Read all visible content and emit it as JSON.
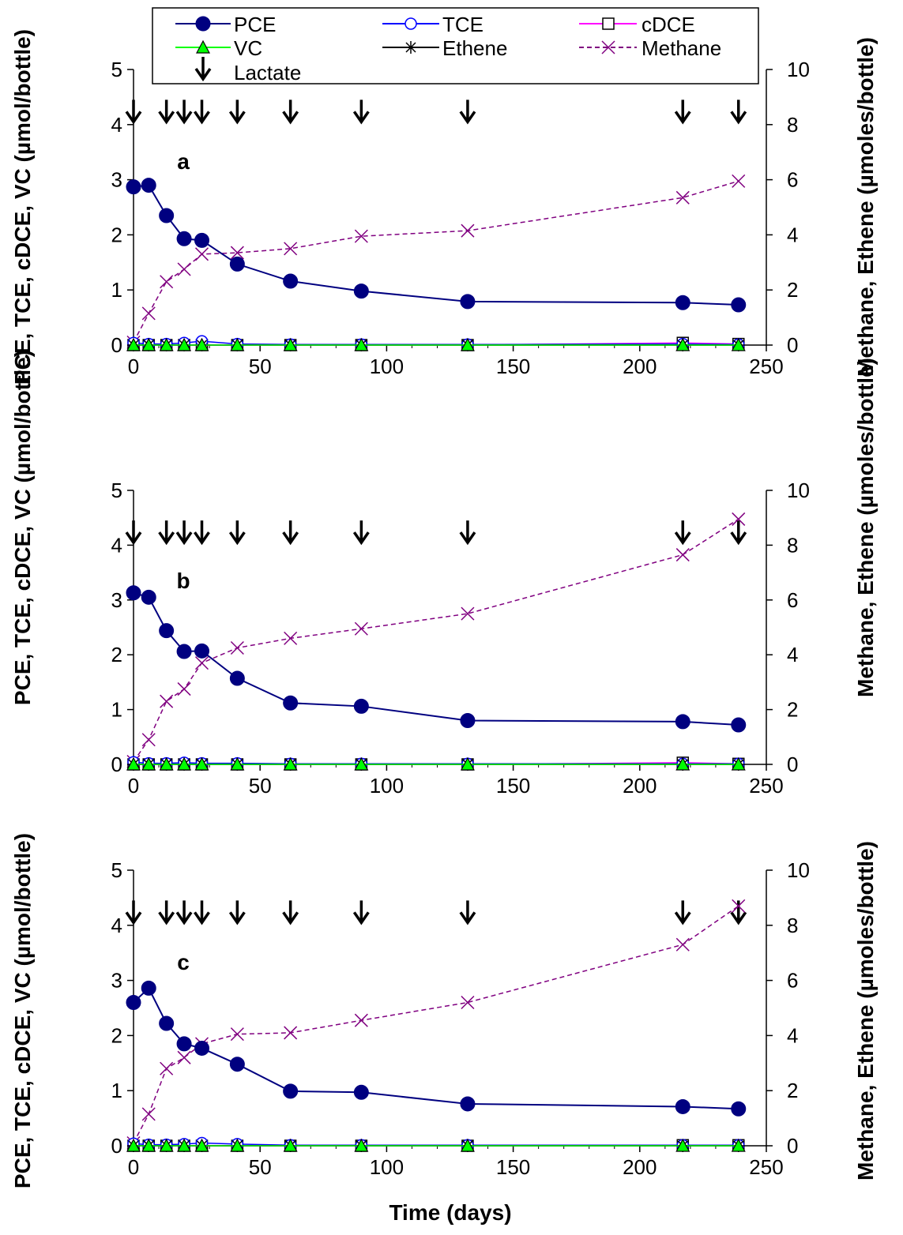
{
  "colors": {
    "PCE": "#000080",
    "TCE": "#0000FF",
    "cDCE": "#FF00FF",
    "VC": "#00FF00",
    "Ethene": "#000000",
    "Methane": "#800080",
    "Lactate": "#000000",
    "axis": "#000000"
  },
  "legend": {
    "entries": [
      "PCE",
      "TCE",
      "cDCE",
      "VC",
      "Ethene",
      "Methane",
      "Lactate"
    ]
  },
  "left_axis_title": "PCE, TCE, cDCE, VC (µmol/bottle)",
  "right_axis_title": "Methane, Ethene (µmoles/bottle)",
  "x_axis_title": "Time (days)",
  "chart_data": [
    {
      "panel": "a",
      "type": "line",
      "xlabel": "",
      "ylabel": "PCE, TCE, cDCE, VC (µmol/bottle)",
      "y2label": "Methane, Ethene (µmoles/bottle)",
      "xlim": [
        0,
        250
      ],
      "ylim": [
        0,
        5
      ],
      "y2lim": [
        0,
        10
      ],
      "xticks": [
        0,
        50,
        100,
        150,
        200,
        250
      ],
      "yticks": [
        0,
        1,
        2,
        3,
        4,
        5
      ],
      "y2ticks": [
        0,
        2,
        4,
        6,
        8,
        10
      ],
      "x": [
        0,
        6,
        13,
        20,
        27,
        41,
        62,
        90,
        132,
        217,
        239
      ],
      "series": [
        {
          "name": "PCE",
          "axis": "left",
          "values": [
            2.87,
            2.9,
            2.35,
            1.93,
            1.9,
            1.47,
            1.16,
            0.98,
            0.79,
            0.77,
            0.73
          ]
        },
        {
          "name": "TCE",
          "axis": "left",
          "values": [
            0.04,
            0.02,
            0.02,
            0.04,
            0.07,
            0.02,
            0.01,
            0.01,
            0.01,
            0.02,
            0.01
          ]
        },
        {
          "name": "cDCE",
          "axis": "left",
          "values": [
            0.0,
            0.0,
            0.0,
            0.0,
            0.0,
            0.0,
            0.0,
            0.0,
            0.0,
            0.04,
            0.02
          ]
        },
        {
          "name": "VC",
          "axis": "left",
          "values": [
            0.0,
            0.0,
            0.0,
            0.0,
            0.0,
            0.0,
            0.0,
            0.0,
            0.0,
            0.0,
            0.0
          ]
        },
        {
          "name": "Ethene",
          "axis": "right",
          "values": [
            0.0,
            0.0,
            0.0,
            0.0,
            0.0,
            0.0,
            0.0,
            0.0,
            0.0,
            0.0,
            0.0
          ]
        },
        {
          "name": "Methane",
          "axis": "right",
          "values": [
            0.1,
            1.15,
            2.3,
            2.75,
            3.3,
            3.35,
            3.5,
            3.95,
            4.15,
            5.35,
            5.95
          ]
        }
      ],
      "lactate_days": [
        0,
        13,
        20,
        27,
        41,
        62,
        90,
        132,
        217,
        239
      ]
    },
    {
      "panel": "b",
      "type": "line",
      "xlabel": "",
      "ylabel": "PCE, TCE, cDCE, VC (µmol/bottle)",
      "y2label": "Methane, Ethene (µmoles/bottle)",
      "xlim": [
        0,
        250
      ],
      "ylim": [
        0,
        5
      ],
      "y2lim": [
        0,
        10
      ],
      "xticks": [
        0,
        50,
        100,
        150,
        200,
        250
      ],
      "yticks": [
        0,
        1,
        2,
        3,
        4,
        5
      ],
      "y2ticks": [
        0,
        2,
        4,
        6,
        8,
        10
      ],
      "x": [
        0,
        6,
        13,
        20,
        27,
        41,
        62,
        90,
        132,
        217,
        239
      ],
      "series": [
        {
          "name": "PCE",
          "axis": "left",
          "values": [
            3.13,
            3.05,
            2.44,
            2.06,
            2.07,
            1.57,
            1.12,
            1.06,
            0.8,
            0.78,
            0.72
          ]
        },
        {
          "name": "TCE",
          "axis": "left",
          "values": [
            0.04,
            0.02,
            0.02,
            0.03,
            0.02,
            0.02,
            0.01,
            0.01,
            0.01,
            0.01,
            0.01
          ]
        },
        {
          "name": "cDCE",
          "axis": "left",
          "values": [
            0.0,
            0.0,
            0.0,
            0.0,
            0.0,
            0.0,
            0.0,
            0.0,
            0.0,
            0.03,
            0.01
          ]
        },
        {
          "name": "VC",
          "axis": "left",
          "values": [
            0.0,
            0.0,
            0.0,
            0.0,
            0.0,
            0.0,
            0.0,
            0.0,
            0.0,
            0.0,
            0.0
          ]
        },
        {
          "name": "Ethene",
          "axis": "right",
          "values": [
            0.0,
            0.0,
            0.0,
            0.0,
            0.0,
            0.0,
            0.0,
            0.0,
            0.0,
            0.0,
            0.0
          ]
        },
        {
          "name": "Methane",
          "axis": "right",
          "values": [
            0.1,
            0.9,
            2.3,
            2.75,
            3.7,
            4.25,
            4.6,
            4.95,
            5.5,
            7.65,
            8.95
          ]
        }
      ],
      "lactate_days": [
        0,
        13,
        20,
        27,
        41,
        62,
        90,
        132,
        217,
        239
      ]
    },
    {
      "panel": "c",
      "type": "line",
      "xlabel": "Time (days)",
      "ylabel": "PCE, TCE, cDCE, VC (µmol/bottle)",
      "y2label": "Methane, Ethene (µmoles/bottle)",
      "xlim": [
        0,
        250
      ],
      "ylim": [
        0,
        5
      ],
      "y2lim": [
        0,
        10
      ],
      "xticks": [
        0,
        50,
        100,
        150,
        200,
        250
      ],
      "yticks": [
        0,
        1,
        2,
        3,
        4,
        5
      ],
      "y2ticks": [
        0,
        2,
        4,
        6,
        8,
        10
      ],
      "x": [
        0,
        6,
        13,
        20,
        27,
        41,
        62,
        90,
        132,
        217,
        239
      ],
      "series": [
        {
          "name": "PCE",
          "axis": "left",
          "values": [
            2.6,
            2.86,
            2.22,
            1.85,
            1.77,
            1.48,
            0.99,
            0.97,
            0.76,
            0.71,
            0.67
          ]
        },
        {
          "name": "TCE",
          "axis": "left",
          "values": [
            0.04,
            0.02,
            0.02,
            0.03,
            0.05,
            0.03,
            0.01,
            0.01,
            0.01,
            0.01,
            0.01
          ]
        },
        {
          "name": "cDCE",
          "axis": "left",
          "values": [
            0.0,
            0.0,
            0.0,
            0.0,
            0.0,
            0.0,
            0.0,
            0.0,
            0.0,
            0.01,
            0.01
          ]
        },
        {
          "name": "VC",
          "axis": "left",
          "values": [
            0.0,
            0.0,
            0.0,
            0.0,
            0.0,
            0.0,
            0.0,
            0.0,
            0.0,
            0.0,
            0.0
          ]
        },
        {
          "name": "Ethene",
          "axis": "right",
          "values": [
            0.0,
            0.0,
            0.0,
            0.0,
            0.0,
            0.0,
            0.0,
            0.0,
            0.0,
            0.0,
            0.0
          ]
        },
        {
          "name": "Methane",
          "axis": "right",
          "values": [
            0.1,
            1.15,
            2.8,
            3.2,
            3.7,
            4.05,
            4.1,
            4.55,
            5.2,
            7.3,
            8.7
          ]
        }
      ],
      "lactate_days": [
        0,
        13,
        20,
        27,
        41,
        62,
        90,
        132,
        217,
        239
      ]
    }
  ]
}
